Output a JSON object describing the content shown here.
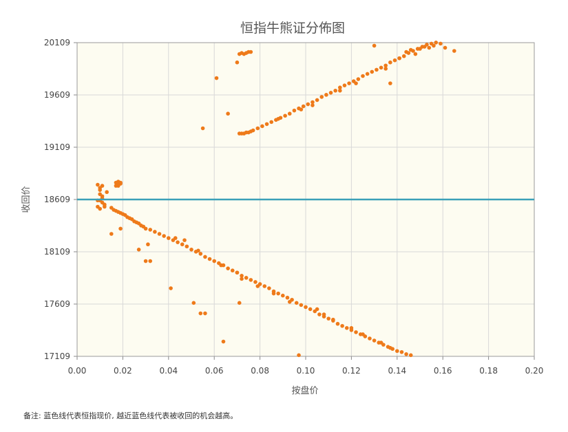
{
  "chart_data": {
    "type": "scatter",
    "title": "恒指牛熊证分佈图",
    "xlabel": "按盘价",
    "ylabel": "收回价",
    "xlim": [
      0.0,
      0.2
    ],
    "ylim": [
      17109,
      20109
    ],
    "x_ticks": [
      "0.00",
      "0.02",
      "0.04",
      "0.06",
      "0.08",
      "0.10",
      "0.12",
      "0.14",
      "0.16",
      "0.18",
      "0.20"
    ],
    "y_ticks": [
      "17109",
      "17609",
      "18109",
      "18609",
      "19109",
      "19609",
      "20109"
    ],
    "grid": true,
    "reference_line": {
      "y": 18609,
      "color": "#3aa0b8"
    },
    "point_color": "#ee7a1a",
    "plot_background": "#fdfcf1",
    "series": [
      {
        "values_x": [
          0.009,
          0.01,
          0.01,
          0.011,
          0.01,
          0.011,
          0.012,
          0.009,
          0.01,
          0.011,
          0.013,
          0.012,
          0.009,
          0.011,
          0.01,
          0.012,
          0.017,
          0.018,
          0.019,
          0.018,
          0.017,
          0.019,
          0.015,
          0.016,
          0.017,
          0.018,
          0.019,
          0.02,
          0.021,
          0.022,
          0.023,
          0.024,
          0.025,
          0.026,
          0.027,
          0.028,
          0.029,
          0.03,
          0.032,
          0.034,
          0.036,
          0.038,
          0.04,
          0.042,
          0.044,
          0.046,
          0.048,
          0.05,
          0.052,
          0.054,
          0.056,
          0.058,
          0.06,
          0.062,
          0.064,
          0.066,
          0.068,
          0.07,
          0.072,
          0.074,
          0.076,
          0.078,
          0.08,
          0.082,
          0.084,
          0.086,
          0.088,
          0.09,
          0.092,
          0.094,
          0.096,
          0.098,
          0.1,
          0.102,
          0.104,
          0.106,
          0.108,
          0.11,
          0.112,
          0.114,
          0.116,
          0.118,
          0.12,
          0.122,
          0.124,
          0.126,
          0.128,
          0.13,
          0.132,
          0.134,
          0.136,
          0.138,
          0.14,
          0.142,
          0.144,
          0.146,
          0.018,
          0.027,
          0.03,
          0.032,
          0.031,
          0.041,
          0.051,
          0.054,
          0.056,
          0.064,
          0.071,
          0.097,
          0.015,
          0.019,
          0.043,
          0.047,
          0.053,
          0.063,
          0.07,
          0.072,
          0.079,
          0.086,
          0.093,
          0.105,
          0.108,
          0.112,
          0.12,
          0.125,
          0.133,
          0.137,
          0.055,
          0.061,
          0.066,
          0.07,
          0.071,
          0.072,
          0.073,
          0.074,
          0.075,
          0.076,
          0.071,
          0.072,
          0.073,
          0.074,
          0.075,
          0.076,
          0.077,
          0.079,
          0.081,
          0.083,
          0.085,
          0.087,
          0.089,
          0.091,
          0.093,
          0.095,
          0.097,
          0.099,
          0.101,
          0.103,
          0.105,
          0.107,
          0.109,
          0.111,
          0.113,
          0.115,
          0.117,
          0.119,
          0.121,
          0.123,
          0.125,
          0.127,
          0.129,
          0.131,
          0.133,
          0.135,
          0.137,
          0.139,
          0.141,
          0.143,
          0.145,
          0.147,
          0.149,
          0.151,
          0.153,
          0.155,
          0.157,
          0.159,
          0.15,
          0.152,
          0.146,
          0.135,
          0.122,
          0.115,
          0.103,
          0.098,
          0.088,
          0.13,
          0.137,
          0.161,
          0.165,
          0.141,
          0.148,
          0.154,
          0.156,
          0.144
        ],
        "values_y": [
          18750,
          18700,
          18660,
          18640,
          18600,
          18580,
          18560,
          18540,
          18520,
          18620,
          18680,
          18560,
          18600,
          18740,
          18720,
          18540,
          18770,
          18780,
          18760,
          18740,
          18740,
          18770,
          18530,
          18510,
          18500,
          18490,
          18480,
          18470,
          18460,
          18440,
          18430,
          18420,
          18400,
          18390,
          18380,
          18360,
          18350,
          18330,
          18320,
          18300,
          18280,
          18260,
          18240,
          18220,
          18200,
          18180,
          18160,
          18130,
          18110,
          18090,
          18060,
          18040,
          18020,
          18000,
          17980,
          17950,
          17930,
          17910,
          17880,
          17860,
          17840,
          17820,
          17800,
          17780,
          17760,
          17730,
          17710,
          17690,
          17670,
          17650,
          17620,
          17600,
          17580,
          17560,
          17540,
          17510,
          17490,
          17470,
          17450,
          17420,
          17400,
          17380,
          17360,
          17340,
          17320,
          17300,
          17280,
          17260,
          17240,
          17220,
          17200,
          17180,
          17160,
          17150,
          17130,
          17120,
          18750,
          18130,
          18020,
          18020,
          18180,
          17760,
          17620,
          17520,
          17520,
          17250,
          17620,
          17120,
          18280,
          18330,
          18240,
          18220,
          18120,
          17980,
          17910,
          17850,
          17780,
          17710,
          17630,
          17560,
          17510,
          17460,
          17380,
          17320,
          17240,
          17190,
          19290,
          19770,
          19430,
          19920,
          20000,
          20010,
          20000,
          20010,
          20020,
          20020,
          19240,
          19240,
          19240,
          19250,
          19250,
          19260,
          19270,
          19290,
          19310,
          19330,
          19350,
          19370,
          19390,
          19410,
          19430,
          19460,
          19480,
          19500,
          19520,
          19540,
          19560,
          19590,
          19610,
          19630,
          19650,
          19680,
          19700,
          19720,
          19740,
          19760,
          19790,
          19810,
          19830,
          19850,
          19870,
          19890,
          19920,
          19940,
          19960,
          19980,
          20010,
          20030,
          20050,
          20070,
          20090,
          20100,
          20110,
          20100,
          20050,
          20070,
          20040,
          19860,
          19720,
          19650,
          19510,
          19470,
          19380,
          20080,
          19720,
          20060,
          20030,
          19960,
          20000,
          20060,
          20080,
          20020
        ]
      }
    ],
    "note": "备注:    蓝色线代表恒指现价, 越近蓝色线代表被收回的机会越高。"
  }
}
